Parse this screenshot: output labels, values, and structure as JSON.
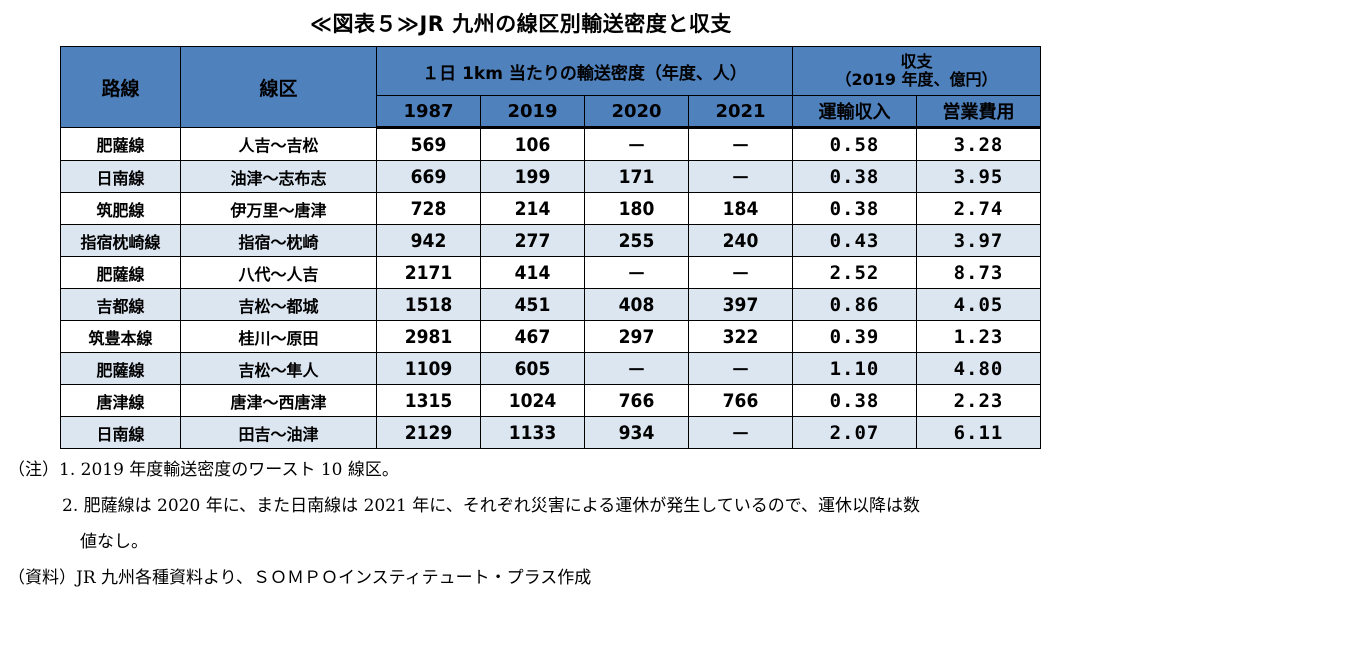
{
  "title": "≪図表５≫JR 九州の線区別輸送密度と収支",
  "headers": {
    "route": "路線",
    "section": "線区",
    "density_group": "１日 1km 当たりの輸送密度（年度、人）",
    "income_group_line1": "収支",
    "income_group_line2": "（2019 年度、億円）",
    "years": [
      "1987",
      "2019",
      "2020",
      "2021"
    ],
    "revenue": "運輸収入",
    "expense": "営業費用"
  },
  "rows": [
    {
      "route": "肥薩線",
      "section": "人吉～吉松",
      "y1987": "569",
      "y2019": "106",
      "y2020": "－",
      "y2021": "－",
      "revenue": "0.58",
      "expense": "3.28"
    },
    {
      "route": "日南線",
      "section": "油津～志布志",
      "y1987": "669",
      "y2019": "199",
      "y2020": "171",
      "y2021": "－",
      "revenue": "0.38",
      "expense": "3.95"
    },
    {
      "route": "筑肥線",
      "section": "伊万里～唐津",
      "y1987": "728",
      "y2019": "214",
      "y2020": "180",
      "y2021": "184",
      "revenue": "0.38",
      "expense": "2.74"
    },
    {
      "route": "指宿枕崎線",
      "section": "指宿～枕崎",
      "y1987": "942",
      "y2019": "277",
      "y2020": "255",
      "y2021": "240",
      "revenue": "0.43",
      "expense": "3.97"
    },
    {
      "route": "肥薩線",
      "section": "八代～人吉",
      "y1987": "2171",
      "y2019": "414",
      "y2020": "－",
      "y2021": "－",
      "revenue": "2.52",
      "expense": "8.73"
    },
    {
      "route": "吉都線",
      "section": "吉松～都城",
      "y1987": "1518",
      "y2019": "451",
      "y2020": "408",
      "y2021": "397",
      "revenue": "0.86",
      "expense": "4.05"
    },
    {
      "route": "筑豊本線",
      "section": "桂川～原田",
      "y1987": "2981",
      "y2019": "467",
      "y2020": "297",
      "y2021": "322",
      "revenue": "0.39",
      "expense": "1.23"
    },
    {
      "route": "肥薩線",
      "section": "吉松～隼人",
      "y1987": "1109",
      "y2019": "605",
      "y2020": "－",
      "y2021": "－",
      "revenue": "1.10",
      "expense": "4.80"
    },
    {
      "route": "唐津線",
      "section": "唐津～西唐津",
      "y1987": "1315",
      "y2019": "1024",
      "y2020": "766",
      "y2021": "766",
      "revenue": "0.38",
      "expense": "2.23"
    },
    {
      "route": "日南線",
      "section": "田吉～油津",
      "y1987": "2129",
      "y2019": "1133",
      "y2020": "934",
      "y2021": "－",
      "revenue": "2.07",
      "expense": "6.11"
    }
  ],
  "notes": {
    "note1": "（注）1. 2019 年度輸送密度のワースト 10 線区。",
    "note2_line1": "2. 肥薩線は 2020 年に、また日南線は 2021 年に、それぞれ災害による運休が発生しているので、運休以降は数",
    "note2_line2": "値なし。",
    "source": "（資料）JR 九州各種資料より、ＳＯＭＰＯインスティテュート・プラス作成"
  },
  "colors": {
    "header_bg": "#4f81bd",
    "stripe_bg": "#dce6f1"
  }
}
